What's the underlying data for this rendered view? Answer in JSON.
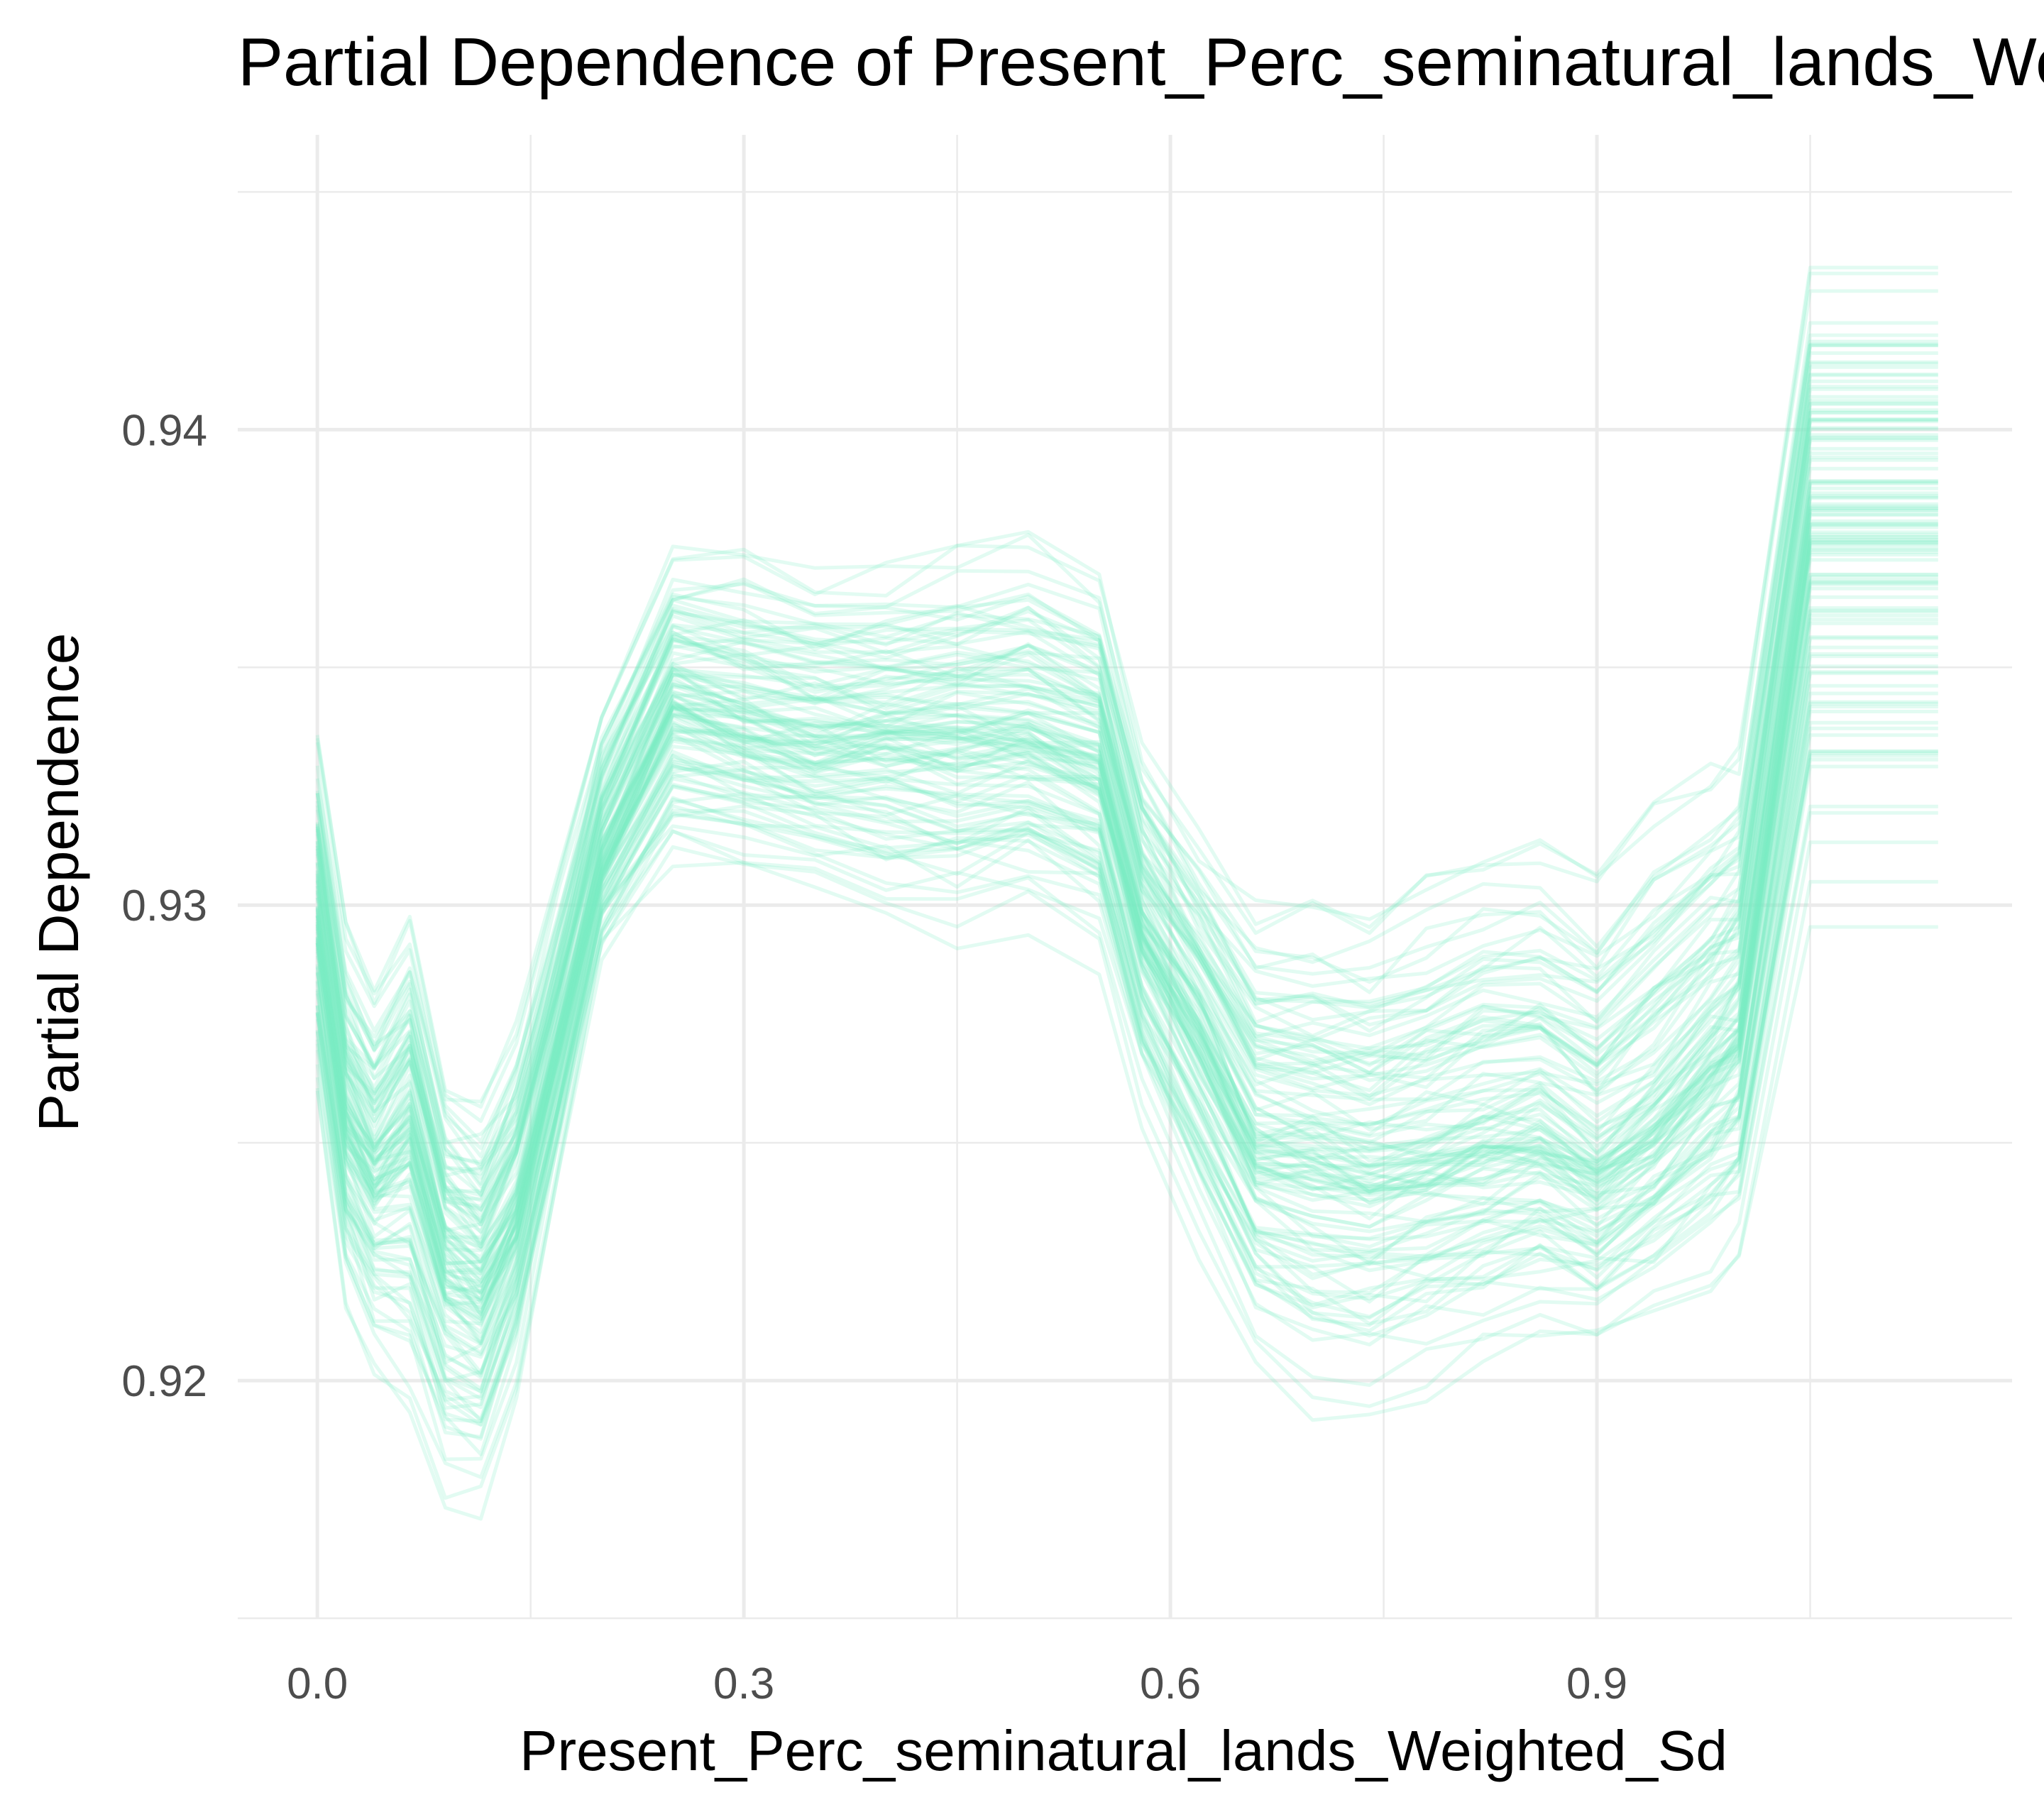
{
  "chart_data": {
    "type": "line",
    "title": "Partial Dependence of Present_Perc_seminatural_lands_Weighted_Sd",
    "xlabel": "Present_Perc_seminatural_lands_Weighted_Sd",
    "ylabel": "Partial Dependence",
    "x_ticks": [
      "0.0",
      "0.3",
      "0.6",
      "0.9"
    ],
    "y_ticks": [
      "0.92",
      "0.93",
      "0.94"
    ],
    "x_tick_values": [
      0.0,
      0.3,
      0.6,
      0.9
    ],
    "y_tick_values": [
      0.92,
      0.93,
      0.94
    ],
    "xlim": [
      -0.056,
      1.192
    ],
    "ylim": [
      0.915,
      0.9462
    ],
    "grid": true,
    "legend": "none",
    "line_color": "#7beec4",
    "line_opacity": 0.22,
    "num_series": 120,
    "x": [
      0.0,
      0.02,
      0.04,
      0.065,
      0.09,
      0.115,
      0.14,
      0.17,
      0.2,
      0.25,
      0.3,
      0.35,
      0.4,
      0.45,
      0.5,
      0.55,
      0.58,
      0.62,
      0.66,
      0.7,
      0.74,
      0.78,
      0.82,
      0.86,
      0.9,
      0.94,
      0.98,
      1.0,
      1.05,
      1.14
    ],
    "series_template": {
      "mean": [
        0.9298,
        0.9255,
        0.9243,
        0.9253,
        0.9225,
        0.922,
        0.9235,
        0.9272,
        0.931,
        0.9343,
        0.9338,
        0.9335,
        0.9335,
        0.9335,
        0.9335,
        0.933,
        0.9295,
        0.9275,
        0.925,
        0.9248,
        0.9245,
        0.9247,
        0.925,
        0.9252,
        0.9245,
        0.9253,
        0.9268,
        0.9275,
        0.938,
        0.938
      ],
      "spread_low": [
        0.925,
        0.921,
        0.9195,
        0.918,
        0.9165,
        0.9165,
        0.919,
        0.924,
        0.9285,
        0.93,
        0.93,
        0.9295,
        0.929,
        0.9285,
        0.929,
        0.928,
        0.925,
        0.922,
        0.9195,
        0.9185,
        0.9185,
        0.919,
        0.9195,
        0.92,
        0.92,
        0.9205,
        0.921,
        0.9215,
        0.9285,
        0.9285
      ],
      "spread_high": [
        0.935,
        0.931,
        0.93,
        0.9315,
        0.928,
        0.9275,
        0.929,
        0.932,
        0.9355,
        0.9385,
        0.939,
        0.9385,
        0.9385,
        0.939,
        0.9395,
        0.9385,
        0.935,
        0.933,
        0.932,
        0.932,
        0.932,
        0.933,
        0.934,
        0.934,
        0.933,
        0.935,
        0.9355,
        0.9358,
        0.9458,
        0.9458
      ]
    }
  }
}
